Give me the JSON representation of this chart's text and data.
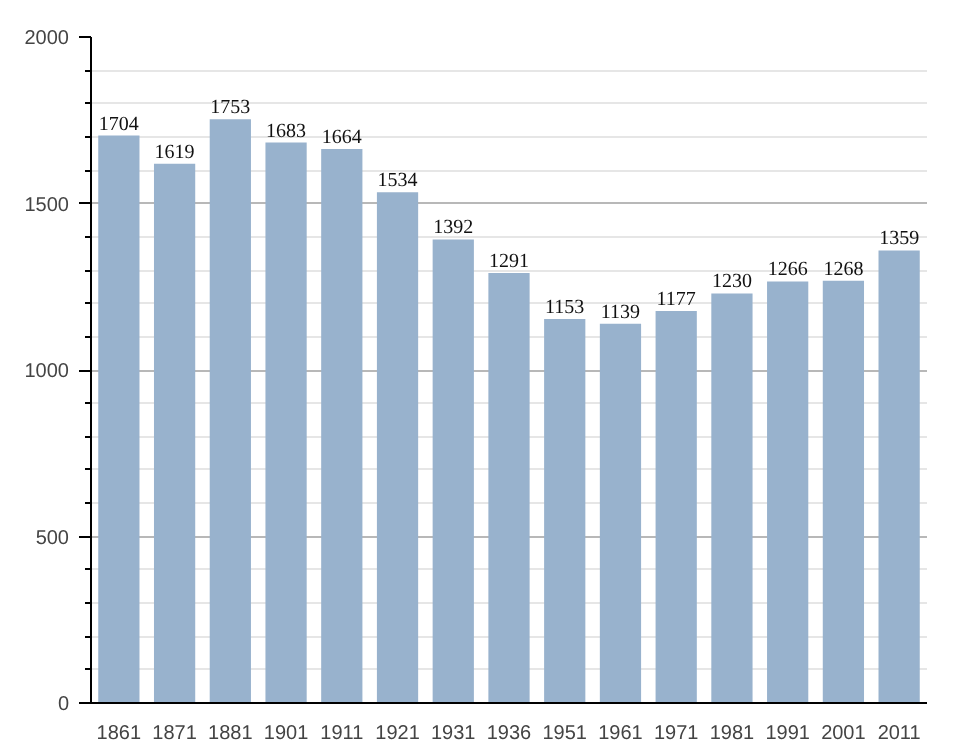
{
  "chart_data": {
    "type": "bar",
    "categories": [
      "1861",
      "1871",
      "1881",
      "1901",
      "1911",
      "1921",
      "1931",
      "1936",
      "1951",
      "1961",
      "1971",
      "1981",
      "1991",
      "2001",
      "2011"
    ],
    "values": [
      1704,
      1619,
      1753,
      1683,
      1664,
      1534,
      1392,
      1291,
      1153,
      1139,
      1177,
      1230,
      1266,
      1268,
      1359
    ],
    "color": "#98b2cd",
    "ylim": [
      0,
      2000
    ],
    "yticks": [
      0,
      500,
      1000,
      1500,
      2000
    ],
    "grid": "y",
    "data_labels": true
  }
}
